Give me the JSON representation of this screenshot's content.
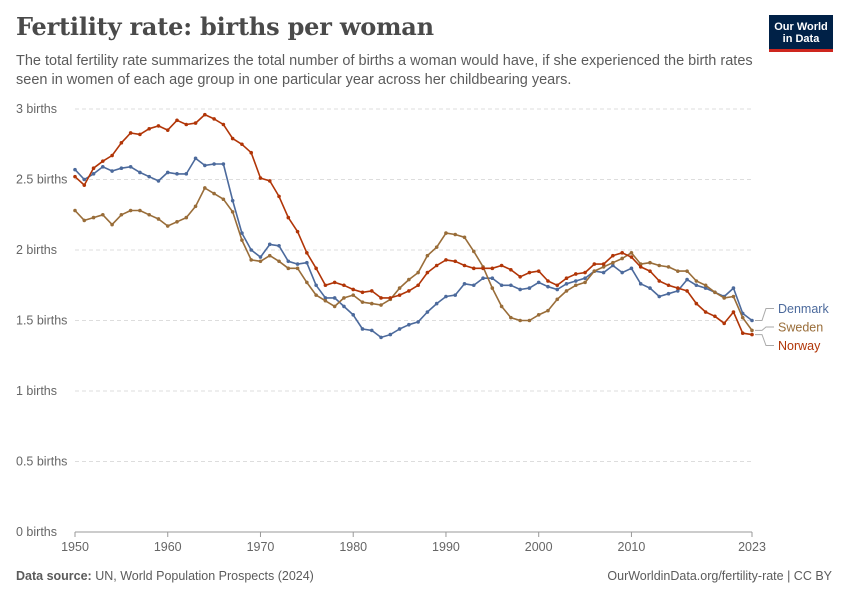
{
  "header": {
    "title": "Fertility rate: births per woman",
    "subtitle": "The total fertility rate summarizes the total number of births a woman would have, if she experienced the birth rates seen in women of each age group in one particular year across her childbearing years."
  },
  "logo": {
    "line1": "Our World",
    "line2": "in Data"
  },
  "footer": {
    "source_label": "Data source:",
    "source_text": "UN, World Population Prospects (2024)",
    "url_license": "OurWorldinData.org/fertility-rate | CC BY"
  },
  "chart_data": {
    "type": "line",
    "title": "Fertility rate: births per woman",
    "xlabel": "",
    "ylabel": "",
    "xlim": [
      1950,
      2023
    ],
    "ylim": [
      0,
      3
    ],
    "x_ticks": [
      1950,
      1960,
      1970,
      1980,
      1990,
      2000,
      2010,
      2023
    ],
    "y_ticks": [
      0,
      0.5,
      1,
      1.5,
      2,
      2.5,
      3
    ],
    "y_tick_labels": [
      "0 births",
      "0.5 births",
      "1 births",
      "1.5 births",
      "2 births",
      "2.5 births",
      "3 births"
    ],
    "grid": "horizontal dashed",
    "legend": "right, at line ends",
    "x": [
      1950,
      1951,
      1952,
      1953,
      1954,
      1955,
      1956,
      1957,
      1958,
      1959,
      1960,
      1961,
      1962,
      1963,
      1964,
      1965,
      1966,
      1967,
      1968,
      1969,
      1970,
      1971,
      1972,
      1973,
      1974,
      1975,
      1976,
      1977,
      1978,
      1979,
      1980,
      1981,
      1982,
      1983,
      1984,
      1985,
      1986,
      1987,
      1988,
      1989,
      1990,
      1991,
      1992,
      1993,
      1994,
      1995,
      1996,
      1997,
      1998,
      1999,
      2000,
      2001,
      2002,
      2003,
      2004,
      2005,
      2006,
      2007,
      2008,
      2009,
      2010,
      2011,
      2012,
      2013,
      2014,
      2015,
      2016,
      2017,
      2018,
      2019,
      2020,
      2021,
      2022,
      2023
    ],
    "series": [
      {
        "name": "Denmark",
        "color": "#4c6a9c",
        "values": [
          2.57,
          2.5,
          2.54,
          2.59,
          2.56,
          2.58,
          2.59,
          2.55,
          2.52,
          2.49,
          2.55,
          2.54,
          2.54,
          2.65,
          2.6,
          2.61,
          2.61,
          2.35,
          2.12,
          2.0,
          1.95,
          2.04,
          2.03,
          1.92,
          1.9,
          1.91,
          1.75,
          1.66,
          1.66,
          1.6,
          1.54,
          1.44,
          1.43,
          1.38,
          1.4,
          1.44,
          1.47,
          1.49,
          1.56,
          1.62,
          1.67,
          1.68,
          1.76,
          1.75,
          1.8,
          1.8,
          1.75,
          1.75,
          1.72,
          1.73,
          1.77,
          1.74,
          1.72,
          1.76,
          1.78,
          1.8,
          1.85,
          1.84,
          1.89,
          1.84,
          1.87,
          1.76,
          1.73,
          1.67,
          1.69,
          1.71,
          1.79,
          1.75,
          1.73,
          1.7,
          1.67,
          1.73,
          1.55,
          1.5
        ]
      },
      {
        "name": "Sweden",
        "color": "#996d39",
        "values": [
          2.28,
          2.21,
          2.23,
          2.25,
          2.18,
          2.25,
          2.28,
          2.28,
          2.25,
          2.22,
          2.17,
          2.2,
          2.23,
          2.31,
          2.44,
          2.4,
          2.36,
          2.27,
          2.07,
          1.93,
          1.92,
          1.96,
          1.92,
          1.87,
          1.87,
          1.77,
          1.68,
          1.64,
          1.6,
          1.66,
          1.68,
          1.63,
          1.62,
          1.61,
          1.65,
          1.73,
          1.79,
          1.84,
          1.96,
          2.02,
          2.12,
          2.11,
          2.09,
          1.99,
          1.88,
          1.73,
          1.6,
          1.52,
          1.5,
          1.5,
          1.54,
          1.57,
          1.65,
          1.71,
          1.75,
          1.77,
          1.85,
          1.88,
          1.91,
          1.94,
          1.98,
          1.9,
          1.91,
          1.89,
          1.88,
          1.85,
          1.85,
          1.78,
          1.75,
          1.7,
          1.66,
          1.67,
          1.52,
          1.43
        ]
      },
      {
        "name": "Norway",
        "color": "#b13507",
        "values": [
          2.52,
          2.46,
          2.58,
          2.63,
          2.67,
          2.76,
          2.83,
          2.82,
          2.86,
          2.88,
          2.85,
          2.92,
          2.89,
          2.9,
          2.96,
          2.93,
          2.89,
          2.79,
          2.75,
          2.69,
          2.51,
          2.49,
          2.38,
          2.23,
          2.13,
          1.98,
          1.87,
          1.75,
          1.77,
          1.75,
          1.72,
          1.7,
          1.71,
          1.66,
          1.66,
          1.68,
          1.71,
          1.75,
          1.84,
          1.89,
          1.93,
          1.92,
          1.89,
          1.87,
          1.87,
          1.87,
          1.89,
          1.86,
          1.81,
          1.84,
          1.85,
          1.78,
          1.75,
          1.8,
          1.83,
          1.84,
          1.9,
          1.9,
          1.96,
          1.98,
          1.95,
          1.88,
          1.85,
          1.78,
          1.75,
          1.73,
          1.71,
          1.62,
          1.56,
          1.53,
          1.48,
          1.56,
          1.41,
          1.4
        ]
      }
    ]
  }
}
